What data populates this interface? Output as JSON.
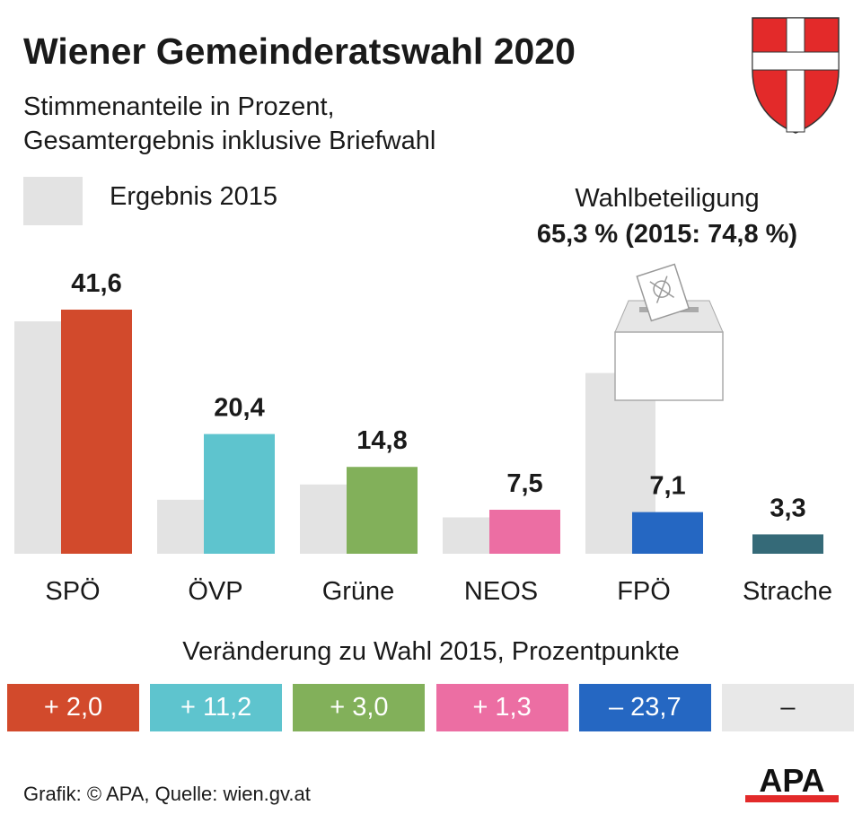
{
  "title": "Wiener Gemeinderatswahl 2020",
  "subtitle_lines": [
    "Stimmenanteile in Prozent,",
    "Gesamtergebnis inklusive Briefwahl"
  ],
  "legend": {
    "label": "Ergebnis 2015",
    "color": "#e3e3e3"
  },
  "turnout": {
    "label": "Wahlbeteiligung",
    "value": "65,3 % (2015: 74,8 %)"
  },
  "chart_data": {
    "type": "bar",
    "categories": [
      "SPÖ",
      "ÖVP",
      "Grüne",
      "NEOS",
      "FPÖ",
      "Strache"
    ],
    "series": [
      {
        "name": "Ergebnis 2015",
        "values": [
          39.6,
          9.2,
          11.8,
          6.2,
          30.8,
          null
        ],
        "color": "#e3e3e3"
      },
      {
        "values": [
          41.6,
          20.4,
          14.8,
          7.5,
          7.1,
          3.3
        ],
        "labels": [
          "41,6",
          "20,4",
          "14,8",
          "7,5",
          "7,1",
          "3,3"
        ],
        "colors": [
          "#d24a2c",
          "#5ec4ce",
          "#82b05a",
          "#ec6ea3",
          "#2567c2",
          "#356a78"
        ]
      }
    ],
    "ylim": [
      0,
      45
    ],
    "grid": false
  },
  "change": {
    "title": "Veränderung zu Wahl 2015, Prozentpunkte",
    "values": [
      "+ 2,0",
      "+ 11,2",
      "+ 3,0",
      "+ 1,3",
      "– 23,7",
      "–"
    ],
    "colors": [
      "#d24a2c",
      "#5ec4ce",
      "#82b05a",
      "#ec6ea3",
      "#2567c2",
      "#e8e8e8"
    ]
  },
  "credit": "Grafik: © APA, Quelle: wien.gv.at",
  "logo": "APA",
  "icons": [
    "vienna-coat-of-arms",
    "ballot-box"
  ]
}
